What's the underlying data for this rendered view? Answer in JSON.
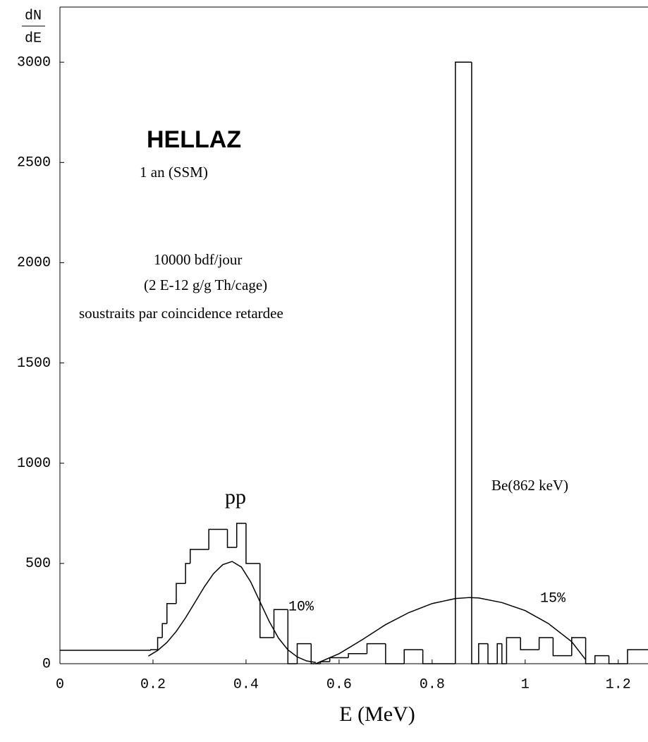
{
  "chart_data": {
    "type": "histogram",
    "x_label": "E (MeV)",
    "y_label": {
      "numerator": "dN",
      "denominator": "dE"
    },
    "xlim": [
      0,
      1.264
    ],
    "ylim": [
      0,
      3275
    ],
    "xticks": [
      0,
      0.2,
      0.4,
      0.6,
      0.8,
      1,
      1.2
    ],
    "yticks": [
      0,
      500,
      1000,
      1500,
      2000,
      2500,
      3000
    ],
    "color": "#000000",
    "bins": [
      0,
      0.195,
      0.21,
      0.22,
      0.23,
      0.25,
      0.27,
      0.28,
      0.32,
      0.36,
      0.38,
      0.4,
      0.43,
      0.46,
      0.49,
      0.51,
      0.54,
      0.56,
      0.58,
      0.62,
      0.66,
      0.7,
      0.74,
      0.78,
      0.85,
      0.885,
      0.9,
      0.92,
      0.94,
      0.95,
      0.96,
      0.99,
      1.03,
      1.06,
      1.1,
      1.13,
      1.15,
      1.18,
      1.22,
      1.264
    ],
    "counts": [
      67,
      70,
      130,
      200,
      300,
      400,
      500,
      570,
      670,
      580,
      700,
      500,
      130,
      270,
      0,
      100,
      0,
      10,
      30,
      50,
      100,
      0,
      70,
      0,
      3000,
      0,
      100,
      0,
      100,
      0,
      130,
      70,
      130,
      40,
      130,
      0,
      40,
      0,
      70
    ],
    "curves": [
      {
        "x": [
          0.19,
          0.21,
          0.23,
          0.25,
          0.27,
          0.29,
          0.31,
          0.33,
          0.35,
          0.37,
          0.39,
          0.41,
          0.43,
          0.45,
          0.47,
          0.49,
          0.51,
          0.53,
          0.55
        ],
        "values": [
          38,
          66,
          106,
          161,
          229,
          305,
          382,
          449,
          494,
          510,
          482,
          408,
          309,
          210,
          127,
          69,
          34,
          14,
          6
        ]
      },
      {
        "x": [
          0.55,
          0.6,
          0.65,
          0.7,
          0.75,
          0.8,
          0.85,
          0.88,
          0.9,
          0.95,
          1.0,
          1.05,
          1.1,
          1.13
        ],
        "values": [
          0,
          50,
          120,
          195,
          255,
          300,
          325,
          330,
          328,
          305,
          265,
          200,
          110,
          20
        ]
      }
    ],
    "annotations": [
      "HELLAZ",
      "1 an (SSM)",
      "10000 bdf/jour",
      "(2 E-12 g/g Th/cage)",
      "soustraits par coincidence retardee",
      "pp",
      "Be(862 keV)",
      "10%",
      "15%"
    ]
  }
}
